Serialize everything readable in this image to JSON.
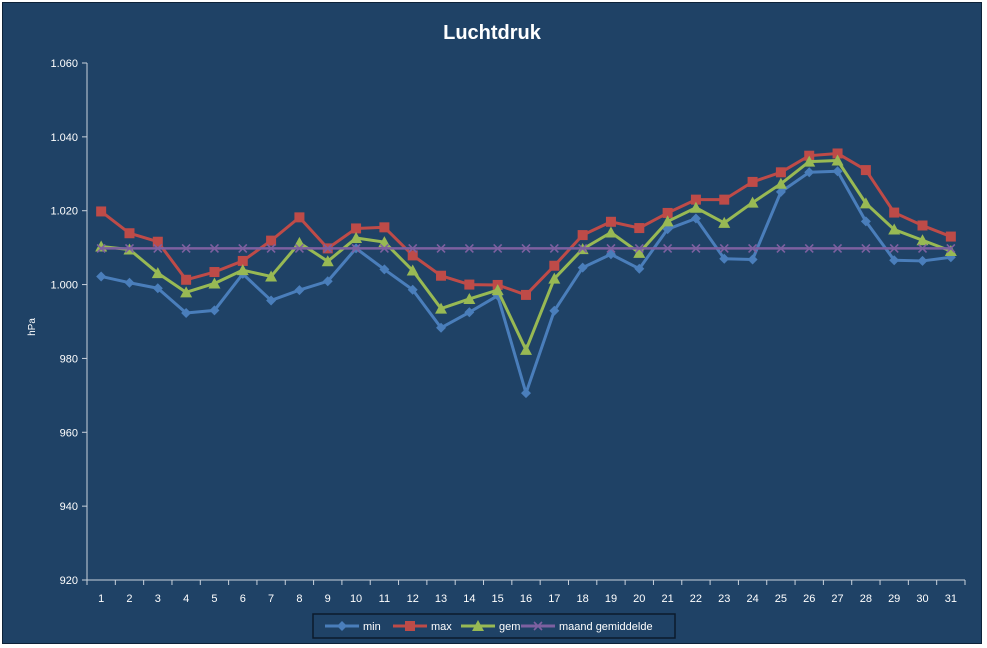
{
  "chart_data": {
    "type": "line",
    "title": "Luchtdruk",
    "xlabel": "",
    "ylabel": "hPa",
    "ylim": [
      920,
      1060
    ],
    "yticks": [
      "920",
      "940",
      "960",
      "980",
      "1.000",
      "1.020",
      "1.040",
      "1.060"
    ],
    "ytick_values": [
      920,
      940,
      960,
      980,
      1000,
      1020,
      1040,
      1060
    ],
    "categories": [
      "1",
      "2",
      "3",
      "4",
      "5",
      "6",
      "7",
      "8",
      "9",
      "10",
      "11",
      "12",
      "13",
      "14",
      "15",
      "16",
      "17",
      "18",
      "19",
      "20",
      "21",
      "22",
      "23",
      "24",
      "25",
      "26",
      "27",
      "28",
      "29",
      "30",
      "31"
    ],
    "grid": false,
    "legend_position": "bottom",
    "series": [
      {
        "name": "min",
        "color": "#4a7ebb",
        "marker": "diamond",
        "values": [
          1002.2,
          1000.5,
          999.0,
          992.3,
          993.0,
          1002.9,
          995.7,
          998.5,
          1000.9,
          1009.8,
          1004.1,
          998.6,
          988.3,
          992.5,
          997.0,
          970.6,
          992.9,
          1004.6,
          1008.2,
          1004.3,
          1015.0,
          1017.9,
          1007.0,
          1006.8,
          1025.1,
          1030.4,
          1030.7,
          1017.1,
          1006.6,
          1006.4,
          1007.4
        ]
      },
      {
        "name": "max",
        "color": "#be4b48",
        "marker": "square",
        "values": [
          1019.8,
          1013.9,
          1011.6,
          1001.3,
          1003.4,
          1006.4,
          1011.9,
          1018.2,
          1009.8,
          1015.2,
          1015.5,
          1007.9,
          1002.4,
          1000.0,
          999.9,
          997.2,
          1005.1,
          1013.4,
          1017.0,
          1015.3,
          1019.4,
          1023.0,
          1023.0,
          1027.8,
          1030.4,
          1034.9,
          1035.5,
          1031.0,
          1019.5,
          1016.0,
          1013.0
        ]
      },
      {
        "name": "gem",
        "color": "#98b954",
        "marker": "triangle",
        "values": [
          1010.3,
          1009.5,
          1003.1,
          997.9,
          1000.3,
          1003.9,
          1002.2,
          1011.3,
          1006.3,
          1012.6,
          1011.5,
          1003.8,
          993.5,
          996.1,
          998.5,
          982.3,
          1001.6,
          1009.6,
          1014.1,
          1008.6,
          1017.1,
          1020.8,
          1016.7,
          1022.2,
          1027.3,
          1033.3,
          1033.6,
          1022.0,
          1014.9,
          1012.0,
          1009.1
        ]
      },
      {
        "name": "maand gemiddelde",
        "color": "#7d60a0",
        "marker": "x",
        "values": [
          1009.8,
          1009.8,
          1009.8,
          1009.8,
          1009.8,
          1009.8,
          1009.8,
          1009.8,
          1009.8,
          1009.8,
          1009.8,
          1009.8,
          1009.8,
          1009.8,
          1009.8,
          1009.8,
          1009.8,
          1009.8,
          1009.8,
          1009.8,
          1009.8,
          1009.8,
          1009.8,
          1009.8,
          1009.8,
          1009.8,
          1009.8,
          1009.8,
          1009.8,
          1009.8,
          1009.8
        ]
      }
    ]
  }
}
